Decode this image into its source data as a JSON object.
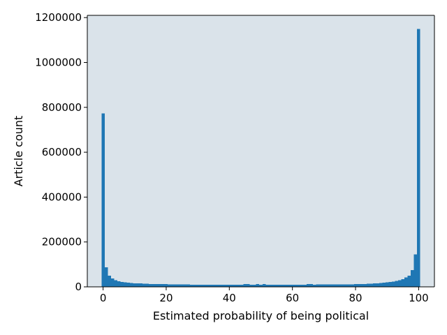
{
  "chart_data": {
    "type": "bar",
    "title": "",
    "xlabel": "Estimated probability of being political",
    "ylabel": "Article count",
    "xlim": [
      -5,
      105
    ],
    "ylim": [
      0,
      1210000
    ],
    "bin_width": 1,
    "x_ticks": [
      0,
      20,
      40,
      60,
      80,
      100
    ],
    "y_ticks": [
      0,
      200000,
      400000,
      600000,
      800000,
      1000000,
      1200000
    ],
    "x_tick_labels": [
      "0",
      "20",
      "40",
      "60",
      "80",
      "100"
    ],
    "y_tick_labels": [
      "0",
      "200000",
      "400000",
      "600000",
      "800000",
      "1000000",
      "1200000"
    ],
    "grid": false,
    "colors": {
      "bar": "#1f77b4",
      "plot_background": "#dae3ea",
      "axis": "#000000"
    },
    "x": [
      0,
      1,
      2,
      3,
      4,
      5,
      6,
      7,
      8,
      9,
      10,
      11,
      12,
      13,
      14,
      15,
      16,
      17,
      18,
      19,
      20,
      21,
      22,
      23,
      24,
      25,
      26,
      27,
      28,
      29,
      30,
      31,
      32,
      33,
      34,
      35,
      36,
      37,
      38,
      39,
      40,
      41,
      42,
      43,
      44,
      45,
      46,
      47,
      48,
      49,
      50,
      51,
      52,
      53,
      54,
      55,
      56,
      57,
      58,
      59,
      60,
      61,
      62,
      63,
      64,
      65,
      66,
      67,
      68,
      69,
      70,
      71,
      72,
      73,
      74,
      75,
      76,
      77,
      78,
      79,
      80,
      81,
      82,
      83,
      84,
      85,
      86,
      87,
      88,
      89,
      90,
      91,
      92,
      93,
      94,
      95,
      96,
      97,
      98,
      99,
      100
    ],
    "values": [
      773000,
      87000,
      50000,
      38000,
      30000,
      25000,
      22000,
      20000,
      18000,
      17000,
      16000,
      15000,
      15000,
      14000,
      14000,
      13000,
      13000,
      12000,
      12000,
      12000,
      12000,
      11500,
      11500,
      11000,
      11000,
      11000,
      10500,
      10500,
      10000,
      10000,
      10000,
      10000,
      10000,
      10000,
      10000,
      10000,
      10000,
      10000,
      10000,
      10000,
      10000,
      10000,
      10000,
      10000,
      10000,
      12000,
      12000,
      10000,
      10000,
      12000,
      10000,
      12000,
      10000,
      10000,
      10000,
      10000,
      10000,
      10000,
      10000,
      10000,
      10000,
      10000,
      10000,
      10000,
      10000,
      12000,
      12000,
      10000,
      11000,
      11000,
      11000,
      11000,
      11000,
      11000,
      11000,
      11000,
      11000,
      11000,
      11000,
      11000,
      12000,
      13000,
      13000,
      13000,
      14000,
      14000,
      15000,
      16000,
      17000,
      18000,
      20000,
      22000,
      24000,
      27000,
      30000,
      35000,
      42000,
      50000,
      75000,
      145000,
      1150000
    ]
  }
}
